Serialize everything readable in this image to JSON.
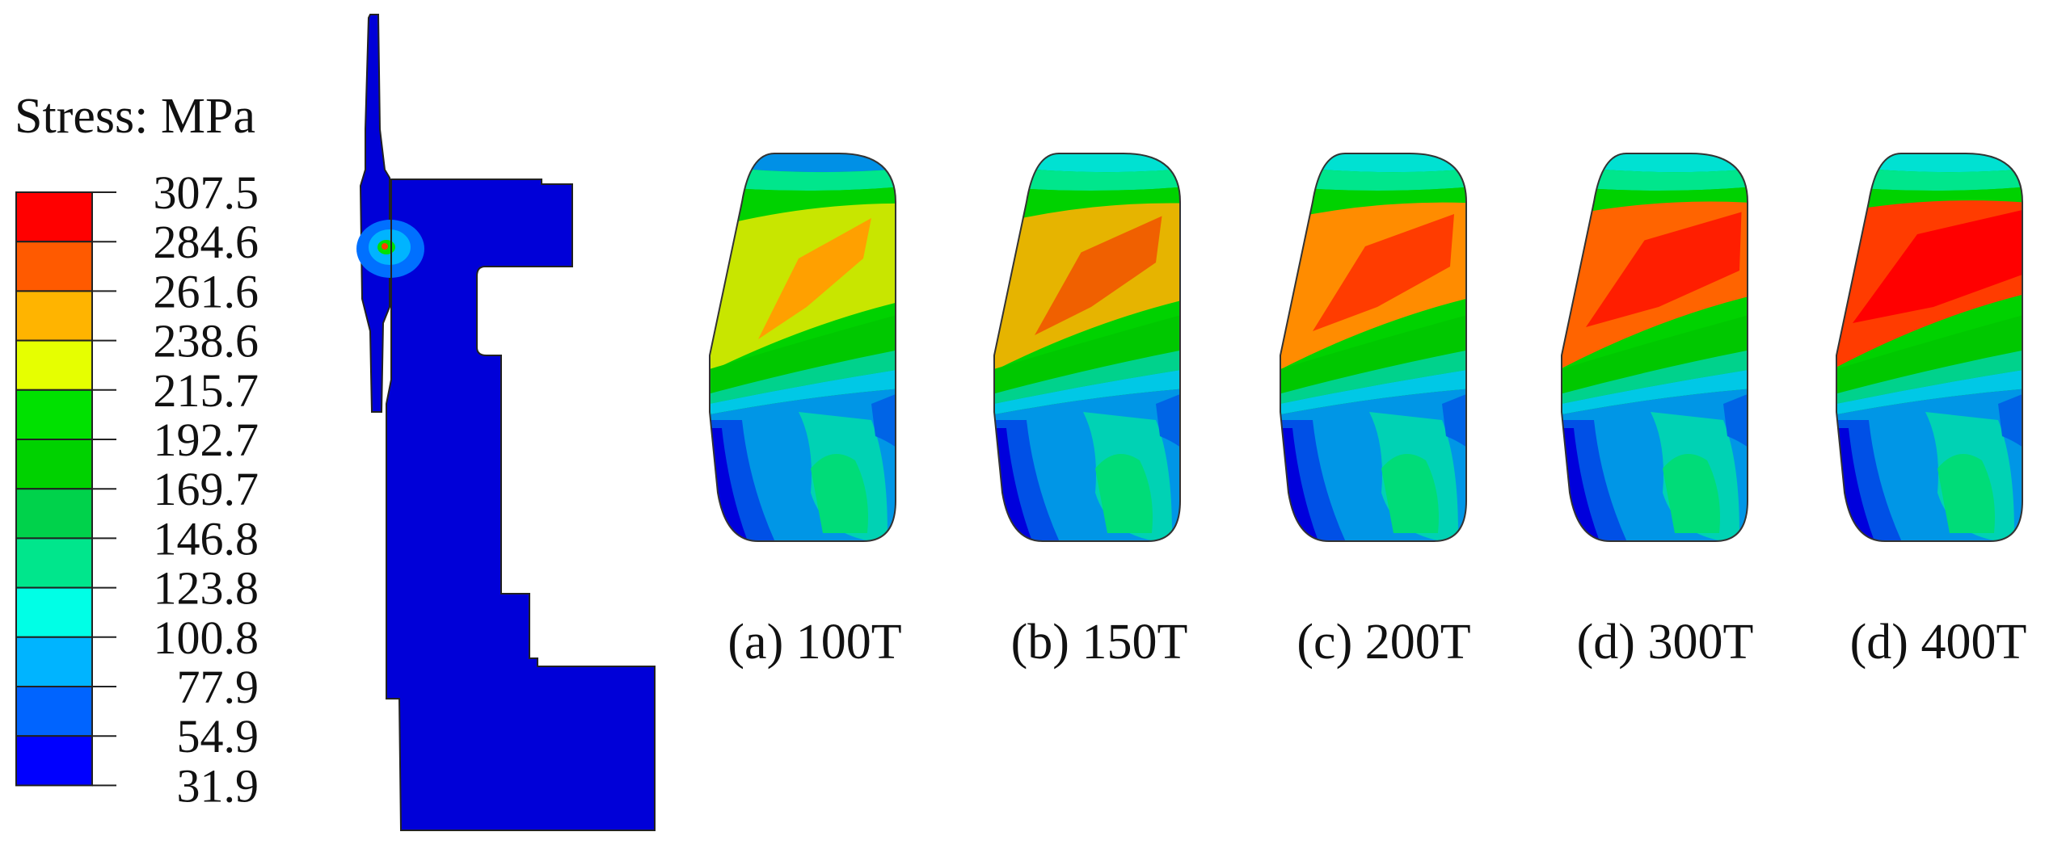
{
  "legend": {
    "title": "Stress: MPa",
    "tick_labels": [
      "307.5",
      "284.6",
      "261.6",
      "238.6",
      "215.7",
      "192.7",
      "169.7",
      "146.8",
      "123.8",
      "100.8",
      "77.9",
      "54.9",
      "31.9"
    ],
    "band_colors": [
      "#ff0000",
      "#ff5a00",
      "#ffb400",
      "#e6ff00",
      "#00e100",
      "#00d200",
      "#00d24b",
      "#00e68c",
      "#00ffe6",
      "#00b4ff",
      "#0064ff",
      "#0000ff"
    ]
  },
  "colors": {
    "model_body": "#0000d8",
    "outline": "#333333"
  },
  "panels": [
    {
      "caption": "(a) 100T",
      "load_tonnes": 100,
      "peak_color": "#ffa000",
      "upper_color": "#c8e600"
    },
    {
      "caption": "(b) 150T",
      "load_tonnes": 150,
      "peak_color": "#f06000",
      "upper_color": "#e6b400"
    },
    {
      "caption": "(c) 200T",
      "load_tonnes": 200,
      "peak_color": "#ff3c00",
      "upper_color": "#ff8c00"
    },
    {
      "caption": "(d) 300T",
      "load_tonnes": 300,
      "peak_color": "#ff1e00",
      "upper_color": "#ff6400"
    },
    {
      "caption": "(d) 400T",
      "load_tonnes": 400,
      "peak_color": "#ff0000",
      "upper_color": "#ff3c00"
    }
  ]
}
